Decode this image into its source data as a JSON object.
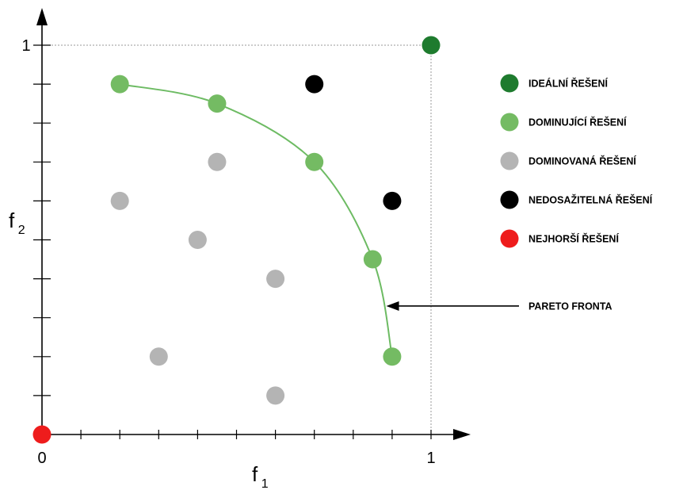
{
  "chart_data": {
    "type": "scatter",
    "xlabel": "f",
    "xlabel_sub": "1",
    "ylabel": "f",
    "ylabel_sub": "2",
    "xlim": [
      0,
      1
    ],
    "ylim": [
      0,
      1
    ],
    "x_tick_step": 0.1,
    "y_tick_step": 0.1,
    "origin_label": "0",
    "x_max_label": "1",
    "y_max_label": "1",
    "grid": false,
    "legend_position": "right",
    "series": [
      {
        "name": "IDEÁLNÍ ŘEŠENÍ",
        "color": "#1e7b2e",
        "points": [
          [
            1.0,
            1.0
          ]
        ]
      },
      {
        "name": "DOMINUJÍCÍ ŘEŠENÍ",
        "color": "#74bb63",
        "points": [
          [
            0.2,
            0.9
          ],
          [
            0.45,
            0.85
          ],
          [
            0.7,
            0.7
          ],
          [
            0.85,
            0.45
          ],
          [
            0.9,
            0.2
          ]
        ]
      },
      {
        "name": "DOMINOVANÁ ŘEŠENÍ",
        "color": "#b4b4b4",
        "points": [
          [
            0.45,
            0.7
          ],
          [
            0.2,
            0.6
          ],
          [
            0.4,
            0.5
          ],
          [
            0.6,
            0.4
          ],
          [
            0.3,
            0.2
          ],
          [
            0.6,
            0.1
          ]
        ]
      },
      {
        "name": "NEDOSAŽITELNÁ ŘEŠENÍ",
        "color": "#000000",
        "points": [
          [
            0.7,
            0.9
          ],
          [
            0.9,
            0.6
          ]
        ]
      },
      {
        "name": "NEJHORŠÍ ŘEŠENÍ",
        "color": "#ee1c1c",
        "points": [
          [
            0.0,
            0.0
          ]
        ]
      }
    ],
    "pareto_front": {
      "color": "#6dbb63",
      "points": [
        [
          0.2,
          0.9
        ],
        [
          0.45,
          0.85
        ],
        [
          0.7,
          0.7
        ],
        [
          0.85,
          0.45
        ],
        [
          0.9,
          0.2
        ]
      ]
    },
    "annotations": [
      {
        "text": "PARETO FRONTA",
        "target": [
          0.885,
          0.33
        ]
      }
    ]
  }
}
